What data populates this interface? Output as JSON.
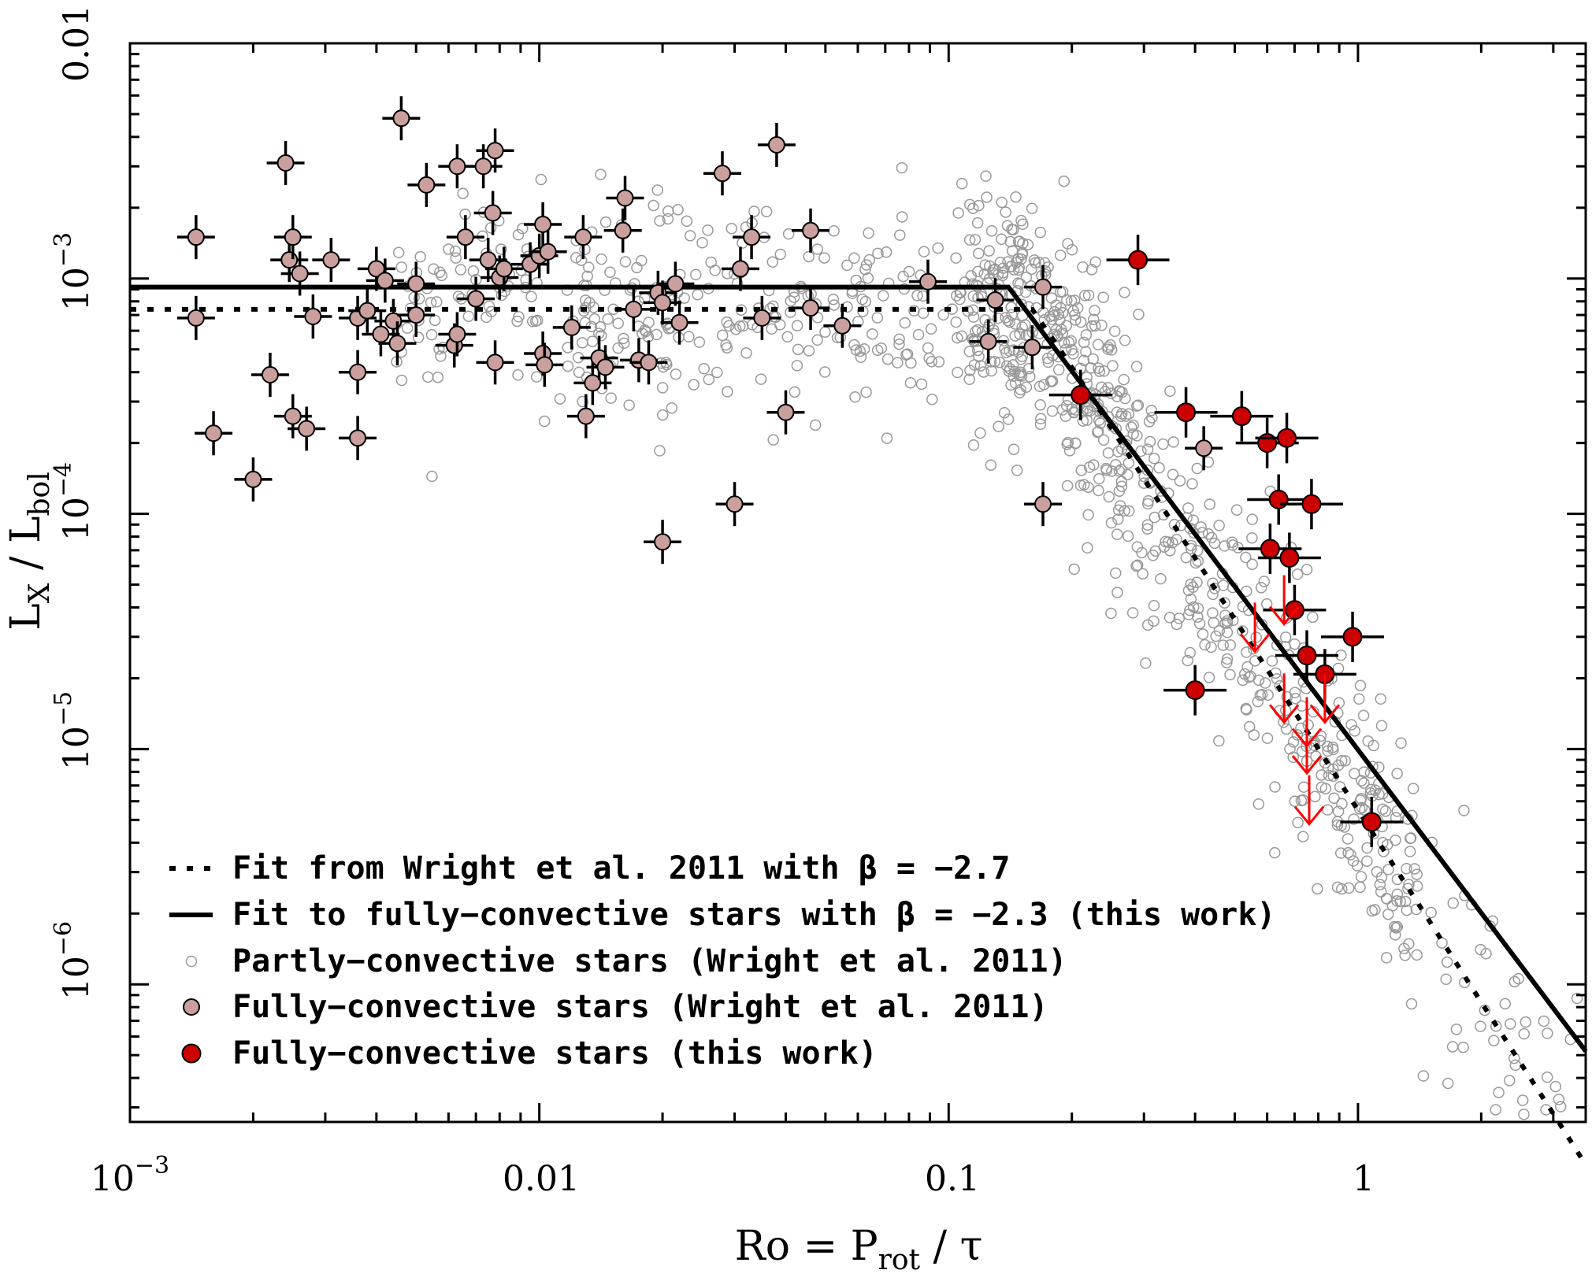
{
  "chart_data": {
    "type": "scatter",
    "xscale": "log",
    "yscale": "log",
    "xlim": [
      0.001,
      3.6
    ],
    "ylim": [
      2.6e-07,
      0.01
    ],
    "xlabel": {
      "main": "Ro = P",
      "sub": "rot",
      "tail": " / τ"
    },
    "ylabel": {
      "l1": "L",
      "s1": "X",
      "mid": " / L",
      "s2": "bol"
    },
    "xticks": [
      {
        "value": 0.001,
        "base": "10",
        "exp": "−3"
      },
      {
        "value": 0.01,
        "text": "0.01"
      },
      {
        "value": 0.1,
        "text": "0.1"
      },
      {
        "value": 1,
        "text": "1"
      }
    ],
    "yticks": [
      {
        "value": 0.01,
        "text": "0.01"
      },
      {
        "value": 0.001,
        "base": "10",
        "exp": "−3"
      },
      {
        "value": 0.0001,
        "base": "10",
        "exp": "−4"
      },
      {
        "value": 1e-05,
        "base": "10",
        "exp": "−5"
      },
      {
        "value": 1e-06,
        "base": "10",
        "exp": "−6"
      }
    ],
    "lines": [
      {
        "name": "Fit from Wright et al. 2011 with β = −2.7",
        "style": "dotted",
        "color": "#000000",
        "points": [
          [
            0.001,
            0.00074
          ],
          [
            0.16,
            0.00074
          ],
          [
            0.19,
            0.00048
          ],
          [
            0.25,
            0.000231
          ],
          [
            0.3,
            0.000141
          ],
          [
            0.4,
            6.5e-05
          ],
          [
            0.5,
            3.56e-05
          ],
          [
            0.7,
            1.44e-05
          ],
          [
            1.0,
            5.5e-06
          ],
          [
            1.5,
            1.84e-06
          ],
          [
            2.0,
            8.4e-07
          ],
          [
            3.0,
            2.82e-07
          ],
          [
            3.6,
            1.71e-07
          ]
        ]
      },
      {
        "name": "Fit to fully−convective stars with β = −2.3 (this work)",
        "style": "solid",
        "color": "#000000",
        "points": [
          [
            0.001,
            0.00092
          ],
          [
            0.14,
            0.00092
          ],
          [
            3.6,
            5.2e-07
          ]
        ]
      }
    ],
    "series": [
      {
        "name": "Partly−convective stars (Wright et al. 2011)",
        "marker": "open-circle",
        "color": "#999999"
      },
      {
        "name": "Fully−convective stars (Wright et al. 2011)",
        "marker": "filled-circle",
        "color": "#c9a09e",
        "points": [
          {
            "x": 0.00145,
            "y": 0.0015
          },
          {
            "x": 0.00145,
            "y": 0.00068
          },
          {
            "x": 0.0016,
            "y": 0.00022
          },
          {
            "x": 0.002,
            "y": 0.00014
          },
          {
            "x": 0.0022,
            "y": 0.00039
          },
          {
            "x": 0.0024,
            "y": 0.0031
          },
          {
            "x": 0.00245,
            "y": 0.0012
          },
          {
            "x": 0.0025,
            "y": 0.0015
          },
          {
            "x": 0.0026,
            "y": 0.00105
          },
          {
            "x": 0.0025,
            "y": 0.00026
          },
          {
            "x": 0.0027,
            "y": 0.00023
          },
          {
            "x": 0.0028,
            "y": 0.00069
          },
          {
            "x": 0.0031,
            "y": 0.0012
          },
          {
            "x": 0.0036,
            "y": 0.00068
          },
          {
            "x": 0.0036,
            "y": 0.0004
          },
          {
            "x": 0.0036,
            "y": 0.00021
          },
          {
            "x": 0.0038,
            "y": 0.00073
          },
          {
            "x": 0.004,
            "y": 0.0011
          },
          {
            "x": 0.0041,
            "y": 0.00058
          },
          {
            "x": 0.0042,
            "y": 0.00098
          },
          {
            "x": 0.0044,
            "y": 0.00066
          },
          {
            "x": 0.0045,
            "y": 0.00053
          },
          {
            "x": 0.0046,
            "y": 0.0048
          },
          {
            "x": 0.005,
            "y": 0.0007
          },
          {
            "x": 0.005,
            "y": 0.00095
          },
          {
            "x": 0.0053,
            "y": 0.0025
          },
          {
            "x": 0.0062,
            "y": 0.00052
          },
          {
            "x": 0.0063,
            "y": 0.00058
          },
          {
            "x": 0.0063,
            "y": 0.003
          },
          {
            "x": 0.0066,
            "y": 0.0015
          },
          {
            "x": 0.007,
            "y": 0.00082
          },
          {
            "x": 0.0073,
            "y": 0.003
          },
          {
            "x": 0.0075,
            "y": 0.0012
          },
          {
            "x": 0.0077,
            "y": 0.0019
          },
          {
            "x": 0.0078,
            "y": 0.0035
          },
          {
            "x": 0.0078,
            "y": 0.00044
          },
          {
            "x": 0.008,
            "y": 0.00101
          },
          {
            "x": 0.0082,
            "y": 0.0011
          },
          {
            "x": 0.0095,
            "y": 0.00115
          },
          {
            "x": 0.01,
            "y": 0.00125
          },
          {
            "x": 0.0102,
            "y": 0.0017
          },
          {
            "x": 0.0102,
            "y": 0.00048
          },
          {
            "x": 0.0103,
            "y": 0.00043
          },
          {
            "x": 0.0105,
            "y": 0.0013
          },
          {
            "x": 0.012,
            "y": 0.00062
          },
          {
            "x": 0.0128,
            "y": 0.0015
          },
          {
            "x": 0.013,
            "y": 0.00026
          },
          {
            "x": 0.0135,
            "y": 0.00036
          },
          {
            "x": 0.014,
            "y": 0.00046
          },
          {
            "x": 0.0145,
            "y": 0.00042
          },
          {
            "x": 0.016,
            "y": 0.0016
          },
          {
            "x": 0.0162,
            "y": 0.0022
          },
          {
            "x": 0.017,
            "y": 0.00074
          },
          {
            "x": 0.0175,
            "y": 0.00045
          },
          {
            "x": 0.0185,
            "y": 0.00044
          },
          {
            "x": 0.0195,
            "y": 0.00087
          },
          {
            "x": 0.02,
            "y": 0.00079
          },
          {
            "x": 0.02,
            "y": 7.6e-05
          },
          {
            "x": 0.0215,
            "y": 0.00095
          },
          {
            "x": 0.022,
            "y": 0.00065
          },
          {
            "x": 0.028,
            "y": 0.0028
          },
          {
            "x": 0.03,
            "y": 0.00011
          },
          {
            "x": 0.031,
            "y": 0.0011
          },
          {
            "x": 0.033,
            "y": 0.0015
          },
          {
            "x": 0.035,
            "y": 0.00068
          },
          {
            "x": 0.038,
            "y": 0.0037
          },
          {
            "x": 0.04,
            "y": 0.00027
          },
          {
            "x": 0.046,
            "y": 0.0016
          },
          {
            "x": 0.046,
            "y": 0.00075
          },
          {
            "x": 0.055,
            "y": 0.00063
          },
          {
            "x": 0.089,
            "y": 0.00097
          },
          {
            "x": 0.125,
            "y": 0.00054
          },
          {
            "x": 0.13,
            "y": 0.00081
          },
          {
            "x": 0.16,
            "y": 0.00051
          },
          {
            "x": 0.17,
            "y": 0.00092
          },
          {
            "x": 0.17,
            "y": 0.00011
          },
          {
            "x": 0.42,
            "y": 0.00019
          }
        ]
      },
      {
        "name": "Fully−convective stars (this work)",
        "marker": "filled-circle",
        "color": "#cc0000",
        "points": [
          {
            "x": 0.21,
            "y": 0.00032
          },
          {
            "x": 0.29,
            "y": 0.0012
          },
          {
            "x": 0.38,
            "y": 0.00027
          },
          {
            "x": 0.4,
            "y": 1.78e-05
          },
          {
            "x": 0.52,
            "y": 0.00026
          },
          {
            "x": 0.6,
            "y": 0.0002
          },
          {
            "x": 0.61,
            "y": 7.1e-05
          },
          {
            "x": 0.64,
            "y": 0.000115
          },
          {
            "x": 0.67,
            "y": 0.00021
          },
          {
            "x": 0.68,
            "y": 6.5e-05
          },
          {
            "x": 0.7,
            "y": 3.9e-05
          },
          {
            "x": 0.75,
            "y": 2.5e-05
          },
          {
            "x": 0.77,
            "y": 0.00011
          },
          {
            "x": 0.83,
            "y": 2.08e-05
          },
          {
            "x": 0.97,
            "y": 3e-05
          },
          {
            "x": 1.08,
            "y": 4.9e-06
          }
        ]
      }
    ],
    "upper_limits": {
      "color": "#ff0000",
      "points": [
        {
          "x": 0.56,
          "y": 2.6e-05
        },
        {
          "x": 0.66,
          "y": 3.4e-05
        },
        {
          "x": 0.66,
          "y": 1.3e-05
        },
        {
          "x": 0.75,
          "y": 1.03e-05
        },
        {
          "x": 0.75,
          "y": 7.9e-06
        },
        {
          "x": 0.76,
          "y": 4.8e-06
        },
        {
          "x": 0.83,
          "y": 1.3e-05
        }
      ]
    },
    "legend": {
      "position": "bottom-left",
      "entries": [
        "Fit from Wright et al. 2011 with β = −2.7",
        "Fit to fully−convective stars with β = −2.3 (this work)",
        "Partly−convective stars (Wright et al. 2011)",
        "Fully−convective stars (Wright et al. 2011)",
        "Fully−convective stars (this work)"
      ]
    }
  }
}
